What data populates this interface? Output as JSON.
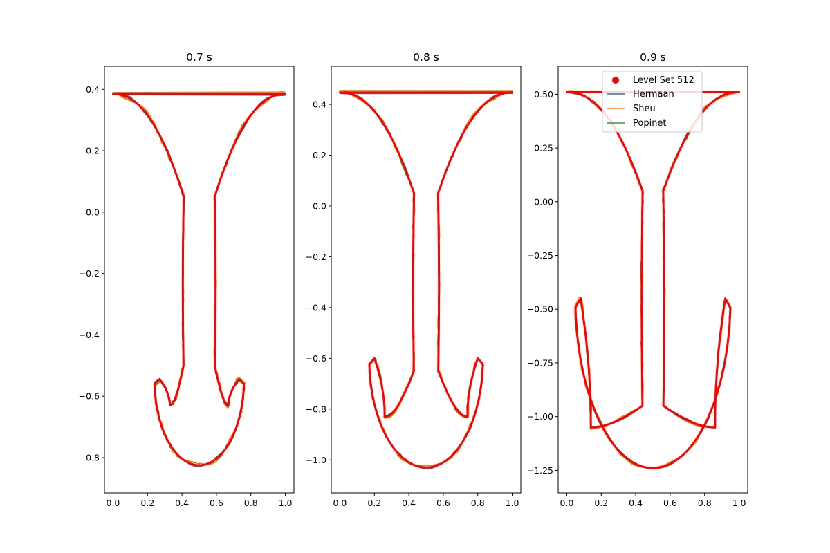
{
  "chart_data": [
    {
      "type": "line",
      "title": "0.7 s",
      "xlim": [
        -0.05,
        1.05
      ],
      "ylim": [
        -0.915,
        0.475
      ],
      "xticks": [
        "0.0",
        "0.2",
        "0.4",
        "0.6",
        "0.8",
        "1.0"
      ],
      "yticks": [
        "-0.8",
        "-0.6",
        "-0.4",
        "-0.2",
        "0.0",
        "0.2",
        "0.4"
      ],
      "tip": 0.385,
      "stem_y": -0.5,
      "stem_x": 0.41,
      "cap_bot": -0.825,
      "cap_w": 0.27,
      "hook_y": -0.545,
      "hook_x": 0.27,
      "inner_y": -0.63
    },
    {
      "type": "line",
      "title": "0.8 s",
      "xlim": [
        -0.05,
        1.05
      ],
      "ylim": [
        -1.13,
        0.55
      ],
      "xticks": [
        "0.0",
        "0.2",
        "0.4",
        "0.6",
        "0.8",
        "1.0"
      ],
      "yticks": [
        "-1.0",
        "-0.8",
        "-0.6",
        "-0.4",
        "-0.2",
        "0.0",
        "0.2",
        "0.4"
      ],
      "tip": 0.447,
      "stem_y": -0.65,
      "stem_x": 0.43,
      "cap_bot": -1.03,
      "cap_w": 0.34,
      "hook_y": -0.6,
      "hook_x": 0.2,
      "inner_y": -0.83
    },
    {
      "type": "line",
      "title": "0.9 s",
      "xlim": [
        -0.05,
        1.05
      ],
      "ylim": [
        -1.355,
        0.63
      ],
      "xticks": [
        "0.0",
        "0.2",
        "0.4",
        "0.6",
        "0.8",
        "1.0"
      ],
      "yticks": [
        "-1.25",
        "-1.00",
        "-0.75",
        "-0.50",
        "-0.25",
        "0.00",
        "0.25",
        "0.50"
      ],
      "tip": 0.51,
      "stem_y": -0.95,
      "stem_x": 0.44,
      "cap_bot": -1.24,
      "cap_w": 0.36,
      "hook_y": -0.45,
      "hook_x": 0.08,
      "inner_y": -1.05
    }
  ],
  "legend": {
    "entries": [
      {
        "label": "Level Set 512",
        "color": "#ff0000",
        "marker": "dot"
      },
      {
        "label": "Hermaan",
        "color": "#1f77b4",
        "marker": "line"
      },
      {
        "label": "Sheu",
        "color": "#ff7f0e",
        "marker": "line"
      },
      {
        "label": "Popinet",
        "color": "#2ca02c",
        "marker": "line"
      }
    ]
  }
}
